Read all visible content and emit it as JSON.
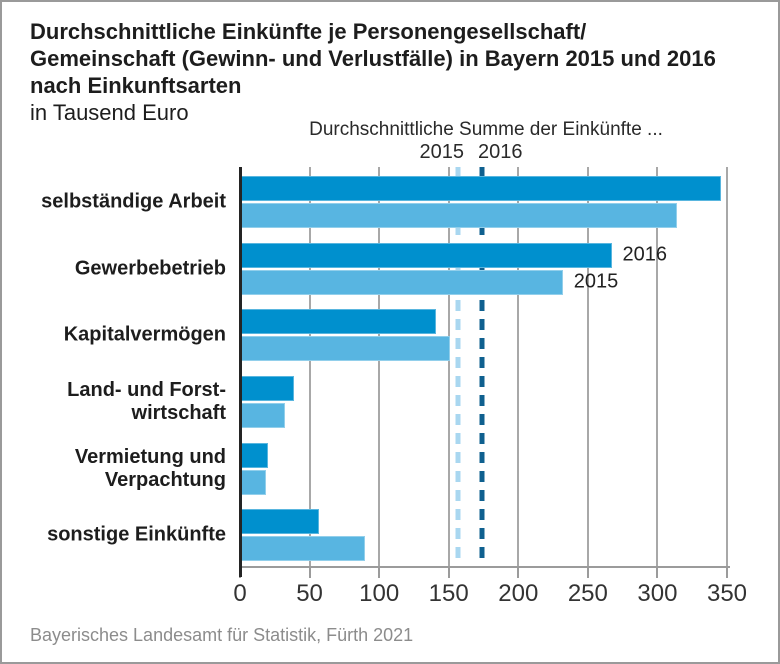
{
  "title": {
    "lines": [
      "Durchschnittliche Einkünfte je Personengesellschaft/",
      "Gemeinschaft (Gewinn- und Verlustfälle) in Bayern 2015 und 2016",
      "nach Einkunftsarten"
    ],
    "subtitle": "in Tausend Euro"
  },
  "annotation": {
    "heading": "Durchschnittliche Summe der Einkünfte ...",
    "year_labels": [
      "2015",
      "2016"
    ]
  },
  "footer": {
    "text": "Bayerisches Landesamt für Statistik, Fürth 2021"
  },
  "colors": {
    "bar_2016": "#0090ce",
    "bar_2015": "#58b5e1",
    "refline_2015": "#a9d7f0",
    "refline_2016": "#0f608f",
    "gridline": "#a8a8a8"
  },
  "chart_data": {
    "type": "bar",
    "orientation": "horizontal",
    "title": "Durchschnittliche Einkünfte je Personengesellschaft/Gemeinschaft (Gewinn- und Verlustfälle) in Bayern 2015 und 2016 nach Einkunftsarten",
    "unit": "in Tausend Euro",
    "xlabel": "",
    "ylabel": "",
    "xlim": [
      0,
      350
    ],
    "xticks": [
      0,
      50,
      100,
      150,
      200,
      250,
      300,
      350
    ],
    "grid": true,
    "categories": [
      "selbständige Arbeit",
      "Gewerbebetrieb",
      "Kapitalvermögen",
      "Land- und Forstwirtschaft",
      "Vermietung und Verpachtung",
      "sonstige Einkünfte"
    ],
    "display_labels": [
      "selbständige Arbeit",
      "Gewerbebetrieb",
      "Kapitalvermögen",
      "Land- und Forst-\nwirtschaft",
      "Vermietung und\nVerpachtung",
      "sonstige Einkünfte"
    ],
    "series": [
      {
        "name": "2016",
        "color": "#0090ce",
        "values": [
          346,
          267,
          141,
          39,
          20,
          57
        ]
      },
      {
        "name": "2015",
        "color": "#58b5e1",
        "values": [
          314,
          232,
          151,
          32,
          19,
          90
        ]
      }
    ],
    "series_labels_at_category_index": 1,
    "reference_lines": [
      {
        "name": "2015",
        "value": 157,
        "color": "#a9d7f0",
        "style": "dashed"
      },
      {
        "name": "2016",
        "value": 174,
        "color": "#0f608f",
        "style": "dashed"
      }
    ]
  }
}
